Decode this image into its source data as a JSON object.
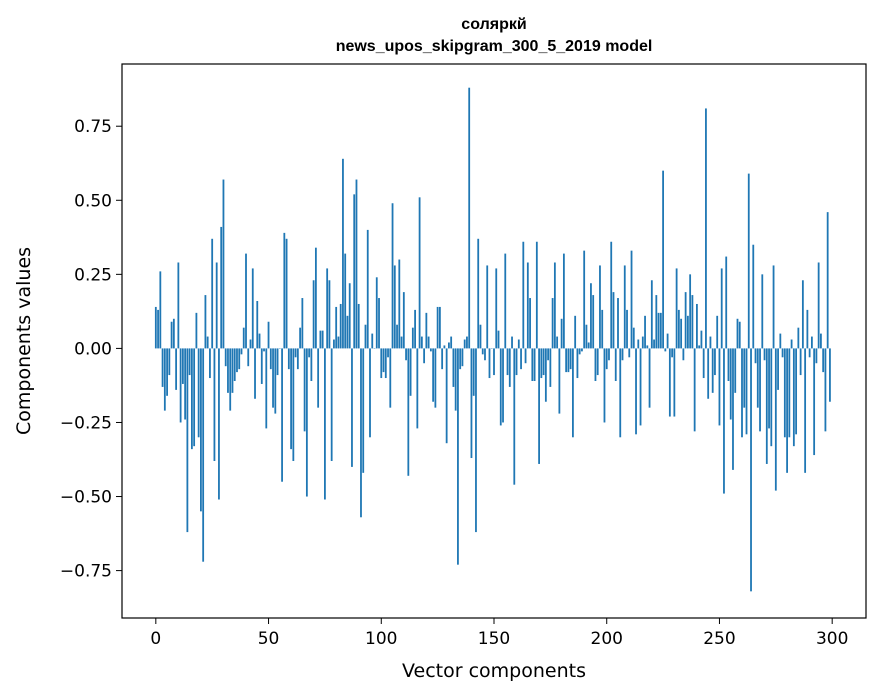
{
  "chart_data": {
    "type": "bar",
    "title": "соляркй",
    "subtitle": "news_upos_skipgram_300_5_2019 model",
    "xlabel": "Vector components",
    "ylabel": "Components values",
    "xlim": [
      -15,
      315
    ],
    "ylim": [
      -0.91,
      0.96
    ],
    "xticks": [
      0,
      50,
      100,
      150,
      200,
      250,
      300
    ],
    "xtick_labels": [
      "0",
      "50",
      "100",
      "150",
      "200",
      "250",
      "300"
    ],
    "yticks": [
      -0.75,
      -0.5,
      -0.25,
      0.0,
      0.25,
      0.5,
      0.75
    ],
    "ytick_labels": [
      "−0.75",
      "−0.50",
      "−0.25",
      "0.00",
      "0.25",
      "0.50",
      "0.75"
    ],
    "bar_color": "#1f77b4",
    "x": "indices 0..299",
    "values": [
      0.14,
      0.13,
      0.26,
      -0.13,
      -0.21,
      -0.16,
      -0.09,
      0.09,
      0.1,
      -0.14,
      0.29,
      -0.25,
      -0.12,
      -0.24,
      -0.62,
      -0.09,
      -0.34,
      -0.33,
      0.12,
      -0.3,
      -0.55,
      -0.72,
      0.18,
      0.04,
      -0.1,
      0.37,
      -0.38,
      0.29,
      -0.51,
      0.41,
      0.57,
      -0.06,
      -0.15,
      -0.21,
      -0.15,
      -0.11,
      -0.08,
      -0.07,
      -0.02,
      0.07,
      0.32,
      -0.06,
      0.03,
      0.27,
      -0.17,
      0.16,
      0.05,
      -0.12,
      -0.01,
      -0.27,
      0.09,
      -0.07,
      -0.2,
      -0.22,
      -0.09,
      0.0,
      -0.45,
      0.39,
      0.37,
      -0.07,
      -0.34,
      -0.38,
      -0.03,
      -0.07,
      0.07,
      0.17,
      -0.28,
      -0.5,
      -0.03,
      -0.11,
      0.23,
      0.34,
      -0.2,
      0.06,
      0.06,
      -0.51,
      0.27,
      0.23,
      -0.38,
      0.03,
      0.14,
      0.04,
      0.15,
      0.64,
      0.32,
      0.11,
      0.22,
      -0.4,
      0.52,
      0.57,
      0.15,
      -0.57,
      -0.42,
      0.08,
      0.4,
      -0.3,
      0.05,
      0.0,
      0.24,
      0.17,
      -0.1,
      -0.08,
      -0.1,
      -0.03,
      -0.2,
      0.49,
      0.28,
      0.08,
      0.3,
      0.04,
      0.19,
      -0.04,
      -0.43,
      -0.16,
      0.07,
      0.13,
      -0.27,
      0.51,
      0.04,
      -0.05,
      0.12,
      0.04,
      -0.01,
      -0.18,
      -0.2,
      0.14,
      0.14,
      -0.07,
      0.01,
      -0.32,
      0.02,
      0.04,
      -0.13,
      -0.21,
      -0.73,
      -0.07,
      -0.06,
      0.03,
      0.04,
      0.88,
      -0.37,
      -0.16,
      -0.62,
      0.37,
      0.08,
      -0.02,
      -0.04,
      0.28,
      -0.1,
      0.0,
      -0.09,
      0.27,
      0.06,
      -0.26,
      -0.25,
      0.32,
      -0.09,
      -0.13,
      0.04,
      -0.46,
      -0.09,
      0.03,
      -0.07,
      0.36,
      -0.05,
      0.29,
      0.17,
      -0.11,
      -0.11,
      0.36,
      -0.39,
      -0.1,
      -0.09,
      -0.18,
      -0.04,
      -0.13,
      0.17,
      0.29,
      0.04,
      -0.22,
      0.1,
      0.32,
      -0.08,
      -0.08,
      -0.07,
      -0.3,
      0.11,
      -0.1,
      -0.02,
      -0.01,
      0.33,
      0.08,
      0.02,
      0.22,
      0.18,
      -0.11,
      -0.09,
      0.28,
      0.13,
      -0.25,
      -0.07,
      -0.04,
      0.36,
      0.19,
      -0.11,
      0.17,
      -0.3,
      -0.04,
      0.28,
      0.13,
      -0.03,
      0.33,
      0.07,
      -0.29,
      0.03,
      -0.26,
      0.04,
      0.11,
      0.01,
      -0.2,
      0.23,
      0.03,
      0.18,
      0.12,
      0.12,
      0.6,
      -0.01,
      0.05,
      -0.23,
      -0.03,
      -0.23,
      0.27,
      0.13,
      0.1,
      -0.04,
      0.19,
      0.11,
      0.25,
      0.18,
      -0.28,
      0.15,
      0.01,
      0.06,
      -0.1,
      0.81,
      -0.17,
      0.04,
      -0.15,
      -0.09,
      0.11,
      -0.26,
      0.27,
      -0.49,
      0.31,
      -0.11,
      -0.24,
      -0.41,
      -0.15,
      0.1,
      0.09,
      -0.3,
      -0.2,
      -0.29,
      0.59,
      -0.82,
      0.35,
      -0.05,
      -0.2,
      -0.28,
      0.25,
      -0.04,
      -0.39,
      -0.27,
      -0.33,
      0.28,
      -0.48,
      -0.14,
      0.05,
      -0.03,
      -0.3,
      -0.42,
      -0.3,
      0.03,
      -0.33,
      -0.29,
      0.07,
      -0.09,
      0.23,
      -0.42,
      0.13,
      -0.03,
      0.04,
      -0.36,
      -0.05,
      0.29,
      0.05,
      -0.08,
      -0.28,
      0.46,
      -0.18
    ]
  }
}
